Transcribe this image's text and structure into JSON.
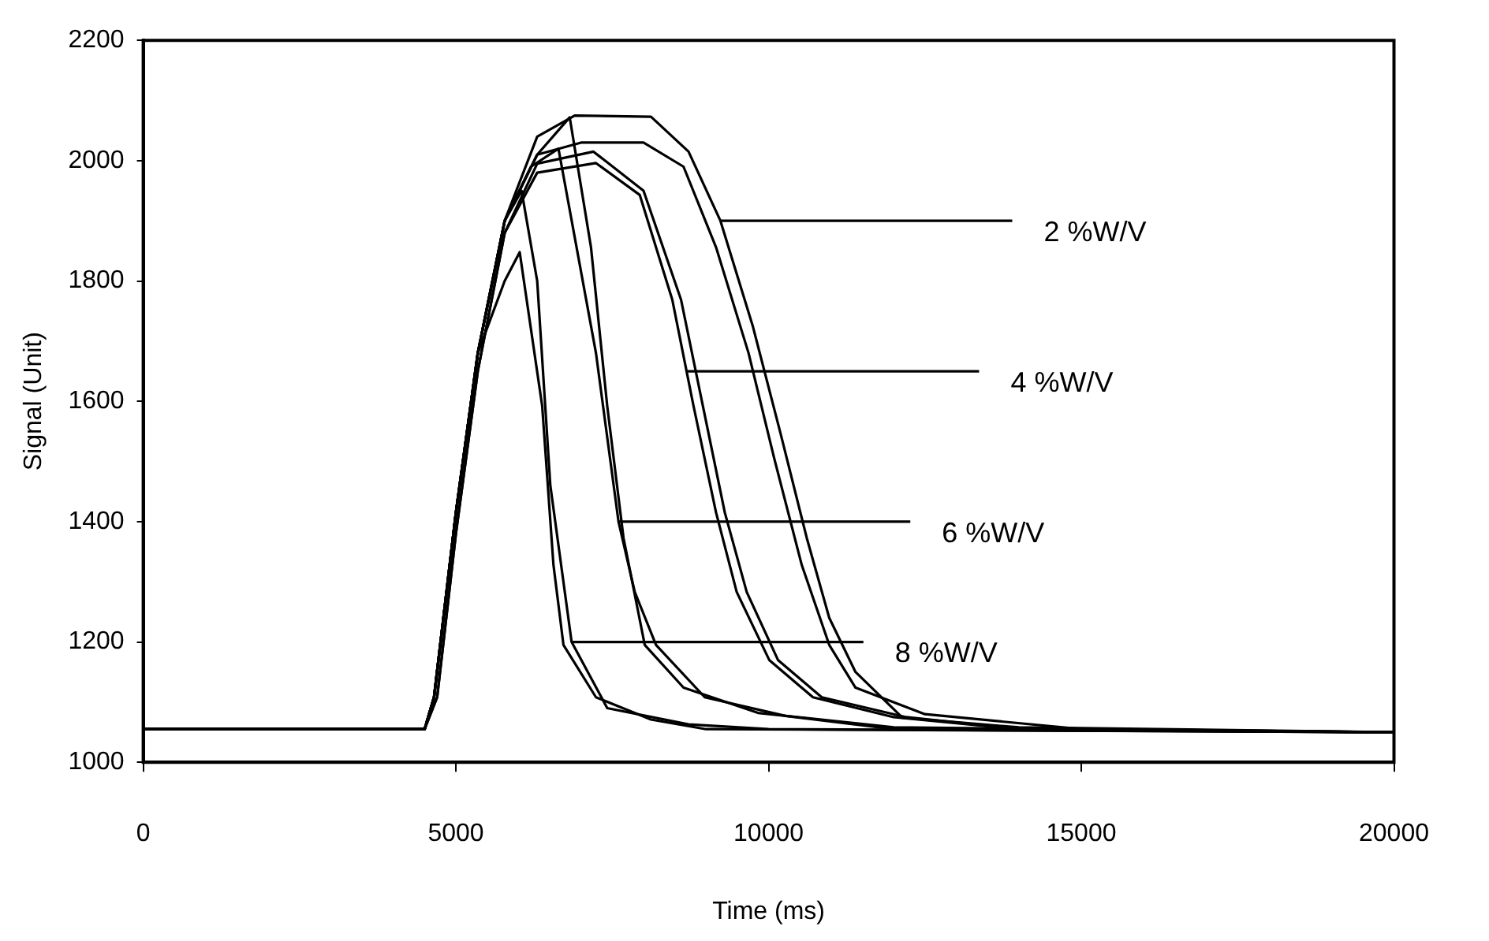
{
  "chart_data": {
    "type": "line",
    "xlabel": "Time (ms)",
    "ylabel": "Signal (Unit)",
    "xlim": [
      0,
      20000
    ],
    "xticks": [
      0,
      5000,
      10000,
      15000,
      20000
    ],
    "ylim": [
      1000,
      2200
    ],
    "yticks": [
      1000,
      1200,
      1400,
      1600,
      1800,
      2000,
      2200
    ],
    "grid": false,
    "legend": false,
    "marker": "none",
    "line_style": "solid",
    "series": [
      {
        "color": "#000000",
        "x": [
          0,
          4500,
          4650,
          5000,
          5350,
          5780,
          6020,
          6380,
          6560,
          6720,
          7240,
          8120,
          9000,
          20000
        ],
        "values": [
          1055,
          1055,
          1108,
          1415,
          1680,
          1800,
          1848,
          1592,
          1328,
          1195,
          1108,
          1071,
          1055,
          1050
        ]
      },
      {
        "color": "#000000",
        "x": [
          0,
          4500,
          4650,
          5000,
          5350,
          5780,
          6050,
          6300,
          6510,
          6850,
          7420,
          8720,
          10000,
          20000
        ],
        "values": [
          1055,
          1055,
          1108,
          1415,
          1680,
          1900,
          1950,
          1800,
          1460,
          1200,
          1090,
          1063,
          1055,
          1050
        ]
      },
      {
        "color": "#000000",
        "x": [
          0,
          4500,
          4650,
          5000,
          5350,
          5780,
          6200,
          6640,
          7240,
          7600,
          7860,
          8200,
          8980,
          10270,
          12000,
          20000
        ],
        "values": [
          1055,
          1055,
          1108,
          1415,
          1680,
          1900,
          1990,
          2020,
          1680,
          1400,
          1283,
          1195,
          1108,
          1077,
          1055,
          1050
        ]
      },
      {
        "color": "#000000",
        "x": [
          0,
          4500,
          4650,
          5000,
          5350,
          5780,
          6300,
          6820,
          7160,
          7420,
          7680,
          8020,
          8640,
          9830,
          12000,
          20000
        ],
        "values": [
          1055,
          1055,
          1108,
          1415,
          1680,
          1900,
          2010,
          2072,
          1856,
          1592,
          1373,
          1195,
          1124,
          1082,
          1058,
          1050
        ]
      },
      {
        "color": "#000000",
        "x": [
          0,
          4500,
          4700,
          5000,
          5350,
          5780,
          6300,
          7240,
          7940,
          8460,
          8800,
          9160,
          9490,
          10010,
          10710,
          12000,
          14000,
          20000
        ],
        "values": [
          1055,
          1055,
          1108,
          1380,
          1650,
          1880,
          1980,
          1996,
          1943,
          1769,
          1592,
          1415,
          1283,
          1170,
          1108,
          1075,
          1055,
          1050
        ]
      },
      {
        "color": "#000000",
        "x": [
          0,
          4500,
          4700,
          5000,
          5350,
          5780,
          6300,
          7200,
          8000,
          8600,
          8950,
          9300,
          9650,
          10150,
          10850,
          12200,
          14000,
          20000
        ],
        "values": [
          1055,
          1055,
          1108,
          1380,
          1650,
          1880,
          1995,
          2015,
          1950,
          1769,
          1592,
          1415,
          1283,
          1170,
          1108,
          1075,
          1055,
          1050
        ]
      },
      {
        "color": "#000000",
        "x": [
          0,
          4500,
          4650,
          5000,
          5350,
          5780,
          6300,
          6900,
          8120,
          8720,
          9230,
          9750,
          10190,
          10610,
          10970,
          11390,
          12140,
          14000,
          20000
        ],
        "values": [
          1055,
          1055,
          1108,
          1415,
          1680,
          1900,
          2040,
          2075,
          2073,
          2015,
          1900,
          1724,
          1547,
          1373,
          1240,
          1150,
          1074,
          1058,
          1050
        ]
      },
      {
        "color": "#000000",
        "x": [
          0,
          4500,
          4650,
          5000,
          5350,
          5780,
          6300,
          7000,
          8000,
          8640,
          9160,
          9680,
          10090,
          10530,
          10970,
          11390,
          12500,
          15000,
          20000
        ],
        "values": [
          1055,
          1055,
          1108,
          1415,
          1680,
          1900,
          2010,
          2030,
          2030,
          1990,
          1856,
          1680,
          1505,
          1328,
          1195,
          1124,
          1080,
          1055,
          1050
        ]
      }
    ],
    "annotations": [
      {
        "text": "2 %W/V",
        "x": 9230,
        "y": 1900
      },
      {
        "text": "4 %W/V",
        "x": 8700,
        "y": 1650
      },
      {
        "text": "6 %W/V",
        "x": 7600,
        "y": 1400
      },
      {
        "text": "8 %W/V",
        "x": 6850,
        "y": 1200
      }
    ]
  }
}
